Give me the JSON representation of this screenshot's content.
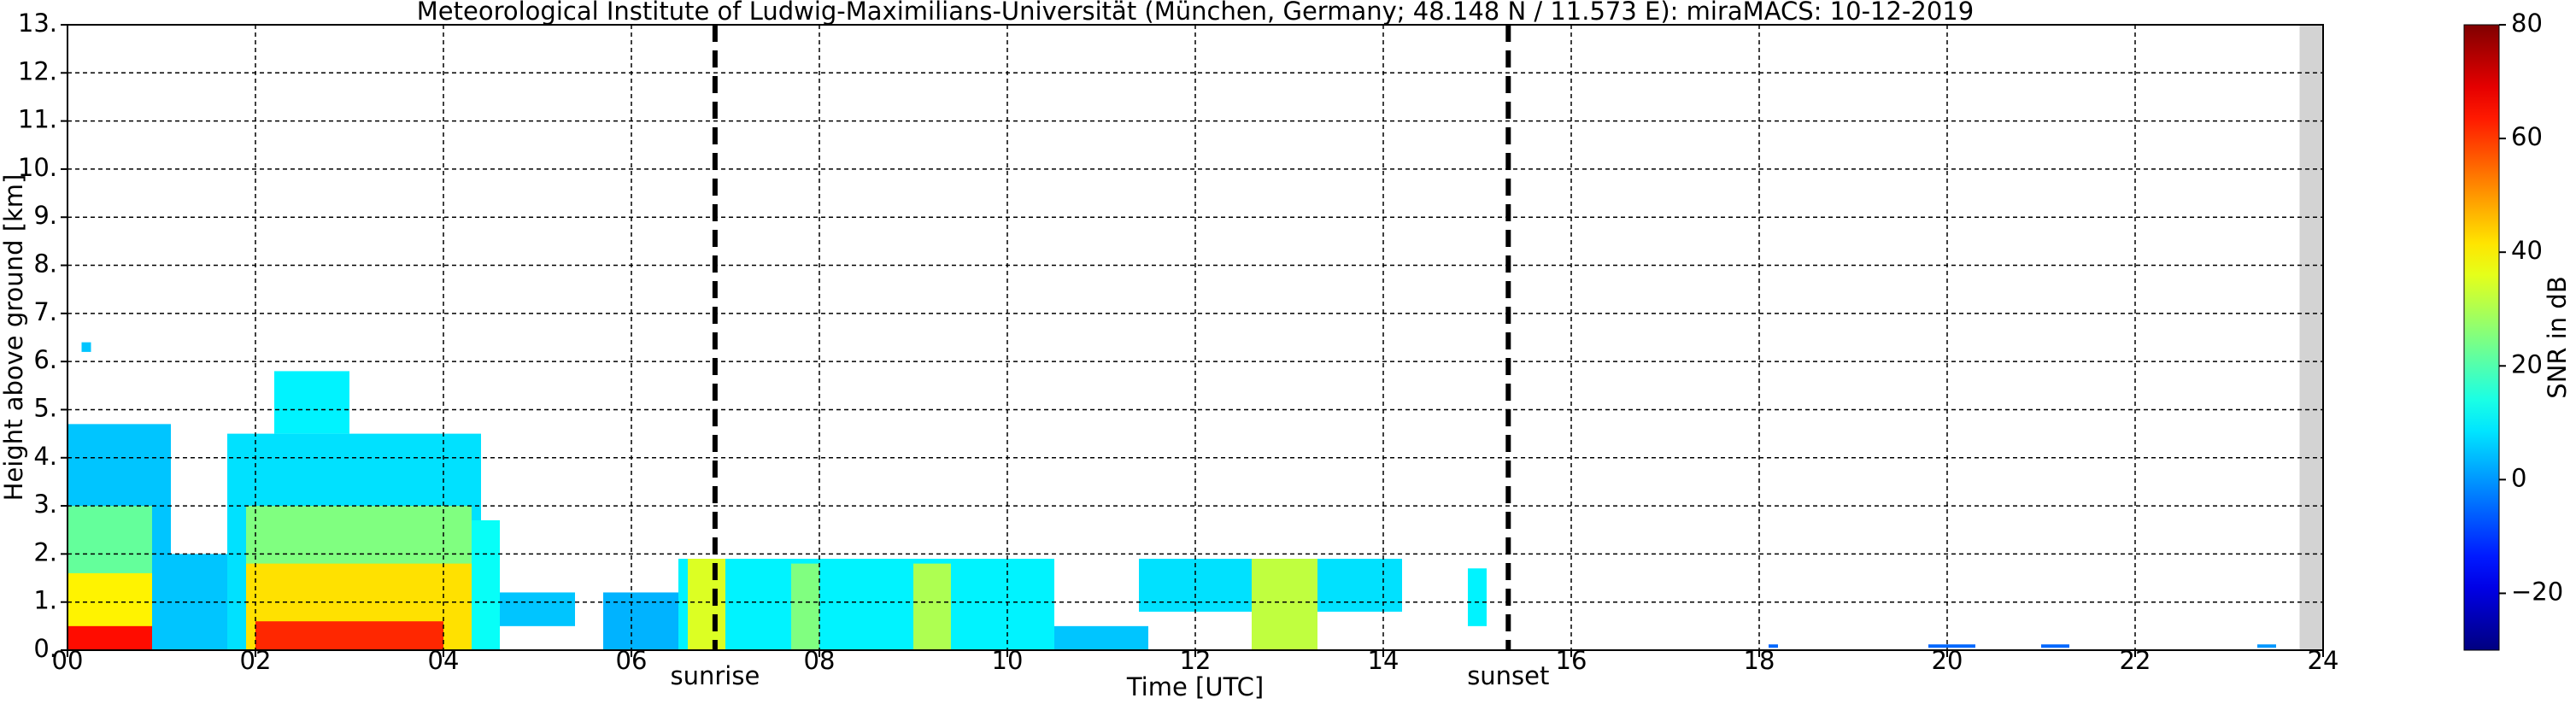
{
  "chart_data": {
    "type": "heatmap",
    "title": "Meteorological Institute of Ludwig-Maximilians-Universität (München, Germany; 48.148 N / 11.573 E):    miraMACS: 10-12-2019",
    "x_label": "Time [UTC]",
    "y_label": "Height above ground [km]",
    "colorbar_label": "SNR in dB",
    "colormap": "jet",
    "grid": true,
    "xlim": [
      0,
      24
    ],
    "xticks": [
      {
        "value": 0,
        "label": "00"
      },
      {
        "value": 2,
        "label": "02"
      },
      {
        "value": 4,
        "label": "04"
      },
      {
        "value": 6,
        "label": "06"
      },
      {
        "value": 8,
        "label": "08"
      },
      {
        "value": 10,
        "label": "10"
      },
      {
        "value": 12,
        "label": "12"
      },
      {
        "value": 14,
        "label": "14"
      },
      {
        "value": 16,
        "label": "16"
      },
      {
        "value": 18,
        "label": "18"
      },
      {
        "value": 20,
        "label": "20"
      },
      {
        "value": 22,
        "label": "22"
      },
      {
        "value": 24,
        "label": "24"
      }
    ],
    "ylim": [
      0,
      13
    ],
    "yticks": [
      {
        "value": 0,
        "label": "0."
      },
      {
        "value": 1,
        "label": "1."
      },
      {
        "value": 2,
        "label": "2."
      },
      {
        "value": 3,
        "label": "3."
      },
      {
        "value": 4,
        "label": "4."
      },
      {
        "value": 5,
        "label": "5."
      },
      {
        "value": 6,
        "label": "6."
      },
      {
        "value": 7,
        "label": "7."
      },
      {
        "value": 8,
        "label": "8."
      },
      {
        "value": 9,
        "label": "9."
      },
      {
        "value": 10,
        "label": "10."
      },
      {
        "value": 11,
        "label": "11."
      },
      {
        "value": 12,
        "label": "12."
      },
      {
        "value": 13,
        "label": "13."
      }
    ],
    "clim": [
      -30,
      80
    ],
    "cticks": [
      {
        "value": -20,
        "label": "−20"
      },
      0,
      20,
      40,
      60,
      80
    ],
    "no_data_color": "#d3d3d3",
    "no_data_spans": [
      {
        "x0": 23.75,
        "x1": 24
      }
    ],
    "annotations": [
      {
        "text": "sunrise",
        "x": 6.89
      },
      {
        "text": "sunset",
        "x": 15.33
      }
    ],
    "echoes": [
      {
        "x0": 0,
        "x1": 1.1,
        "y0": 0,
        "y1": 4.7,
        "snr": 5
      },
      {
        "x0": 0.15,
        "x1": 0.25,
        "y0": 6.2,
        "y1": 6.4,
        "snr": 5
      },
      {
        "x0": 0,
        "x1": 0.9,
        "y0": 0,
        "y1": 3.0,
        "snr": 22
      },
      {
        "x0": 0,
        "x1": 0.9,
        "y0": 0,
        "y1": 1.6,
        "snr": 40
      },
      {
        "x0": 0,
        "x1": 0.9,
        "y0": 0,
        "y1": 0.5,
        "snr": 65
      },
      {
        "x0": 1.1,
        "x1": 1.8,
        "y0": 0,
        "y1": 2.0,
        "snr": 5
      },
      {
        "x0": 1.7,
        "x1": 4.4,
        "y0": 0,
        "y1": 4.5,
        "snr": 8
      },
      {
        "x0": 2.2,
        "x1": 3.0,
        "y0": 4.5,
        "y1": 5.8,
        "snr": 10
      },
      {
        "x0": 1.9,
        "x1": 4.3,
        "y0": 0,
        "y1": 3.0,
        "snr": 25
      },
      {
        "x0": 1.9,
        "x1": 4.3,
        "y0": 0,
        "y1": 1.8,
        "snr": 42
      },
      {
        "x0": 2.0,
        "x1": 4.0,
        "y0": 0,
        "y1": 0.6,
        "snr": 62
      },
      {
        "x0": 4.3,
        "x1": 4.6,
        "y0": 0,
        "y1": 2.7,
        "snr": 12
      },
      {
        "x0": 4.6,
        "x1": 5.4,
        "y0": 0.5,
        "y1": 1.2,
        "snr": 5
      },
      {
        "x0": 5.7,
        "x1": 6.5,
        "y0": 0,
        "y1": 1.2,
        "snr": 3
      },
      {
        "x0": 6.5,
        "x1": 10.5,
        "y0": 0,
        "y1": 1.9,
        "snr": 10
      },
      {
        "x0": 6.6,
        "x1": 7.0,
        "y0": 0,
        "y1": 1.9,
        "snr": 35
      },
      {
        "x0": 7.7,
        "x1": 8.0,
        "y0": 0,
        "y1": 1.8,
        "snr": 25
      },
      {
        "x0": 9.0,
        "x1": 9.4,
        "y0": 0,
        "y1": 1.8,
        "snr": 30
      },
      {
        "x0": 10.5,
        "x1": 11.5,
        "y0": 0,
        "y1": 0.5,
        "snr": 5
      },
      {
        "x0": 11.4,
        "x1": 14.2,
        "y0": 0.8,
        "y1": 1.9,
        "snr": 8
      },
      {
        "x0": 12.6,
        "x1": 13.3,
        "y0": 0,
        "y1": 1.9,
        "snr": 32
      },
      {
        "x0": 14.9,
        "x1": 15.1,
        "y0": 0.5,
        "y1": 1.7,
        "snr": 10
      },
      {
        "x0": 18.1,
        "x1": 18.2,
        "y0": 0.05,
        "y1": 0.12,
        "snr": -5
      },
      {
        "x0": 19.8,
        "x1": 20.3,
        "y0": 0.05,
        "y1": 0.12,
        "snr": -5
      },
      {
        "x0": 21.0,
        "x1": 21.3,
        "y0": 0.05,
        "y1": 0.12,
        "snr": -5
      },
      {
        "x0": 23.3,
        "x1": 23.5,
        "y0": 0.05,
        "y1": 0.12,
        "snr": 0
      }
    ]
  }
}
